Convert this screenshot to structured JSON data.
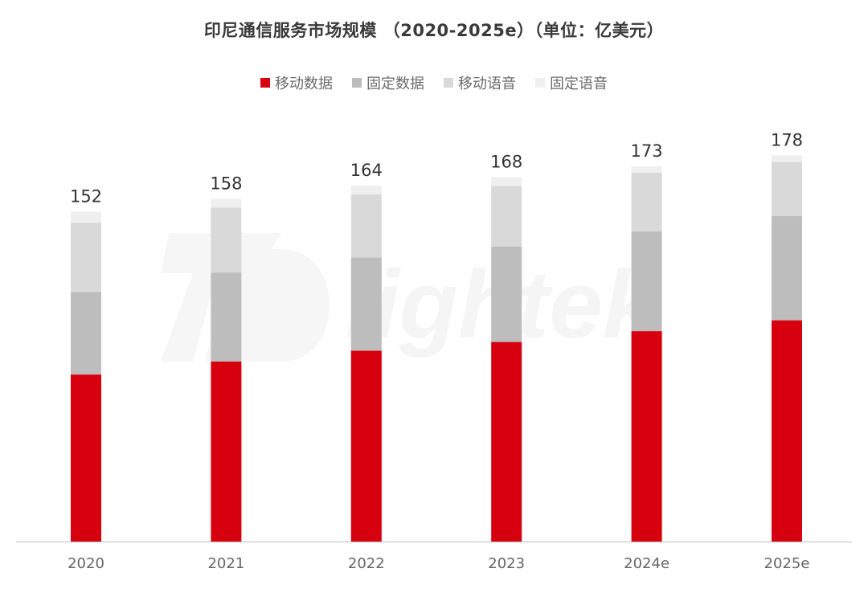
{
  "title": "印尼通信服务市场规模 （2020-2025e）（单位：亿美元）",
  "watermark": "Dlightek",
  "chart_data": {
    "type": "bar",
    "stacked": true,
    "categories": [
      "2020",
      "2021",
      "2022",
      "2023",
      "2024e",
      "2025e"
    ],
    "totals": [
      152,
      158,
      164,
      168,
      173,
      178
    ],
    "series": [
      {
        "name": "移动数据",
        "color": "#d7000f",
        "values": [
          77,
          83,
          88,
          92,
          97,
          102
        ]
      },
      {
        "name": "固定数据",
        "color": "#bdbdbd",
        "values": [
          38,
          41,
          43,
          44,
          46,
          48
        ]
      },
      {
        "name": "移动语音",
        "color": "#d9d9d9",
        "values": [
          32,
          30,
          29,
          28,
          27,
          25
        ]
      },
      {
        "name": "固定语音",
        "color": "#efefef",
        "values": [
          5,
          4,
          4,
          4,
          3,
          3
        ]
      }
    ],
    "ylim": [
      0,
      200
    ],
    "grid": false,
    "legend": "top-center"
  }
}
